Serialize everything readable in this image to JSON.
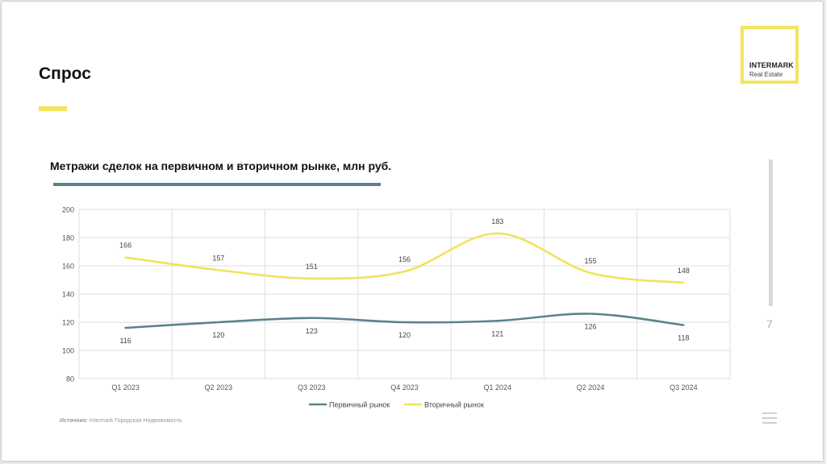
{
  "slide": {
    "title": "Спрос",
    "logo_name": "INTERMARK",
    "logo_sub": "Real Estate",
    "page_number": "7",
    "source_label": "Источник:",
    "source_text": "Intermark Городская Недвижимость"
  },
  "colors": {
    "accent_yellow": "#f2e55c",
    "primary_series": "#5b838c",
    "secondary_series": "#f0e35a"
  },
  "chart_data": {
    "type": "line",
    "title": "Метражи сделок на первичном и вторичном рынке, млн руб.",
    "categories": [
      "Q1 2023",
      "Q2 2023",
      "Q3 2023",
      "Q4 2023",
      "Q1 2024",
      "Q2 2024",
      "Q3 2024"
    ],
    "series": [
      {
        "name": "Первичный рынок",
        "color": "#5b838c",
        "values": [
          116,
          120,
          123,
          120,
          121,
          126,
          118
        ]
      },
      {
        "name": "Вторичный рынок",
        "color": "#f0e35a",
        "values": [
          166,
          157,
          151,
          156,
          183,
          155,
          148
        ]
      }
    ],
    "ylim": [
      80,
      200
    ],
    "yticks": [
      80,
      100,
      120,
      140,
      160,
      180,
      200
    ],
    "grid": true,
    "smooth": true,
    "data_labels": true,
    "legend_position": "bottom"
  }
}
